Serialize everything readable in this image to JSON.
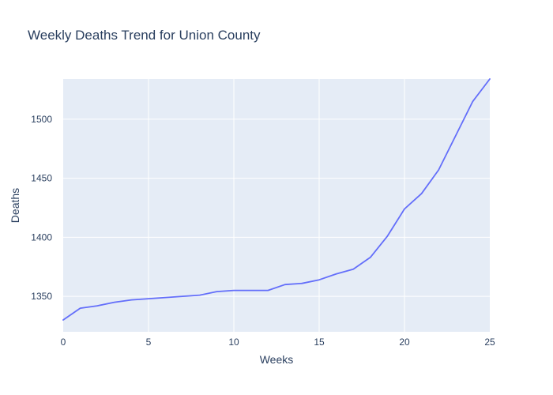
{
  "colors": {
    "plot_background": "#e5ecf6",
    "grid": "#ffffff",
    "series_line": "#636efa",
    "text": "#2a3f5f"
  },
  "chart_data": {
    "type": "line",
    "title": "Weekly Deaths Trend for Union County",
    "xlabel": "Weeks",
    "ylabel": "Deaths",
    "xlim": [
      0,
      25
    ],
    "ylim": [
      1320,
      1534
    ],
    "x_ticks": [
      0,
      5,
      10,
      15,
      20,
      25
    ],
    "y_ticks": [
      1350,
      1400,
      1450,
      1500
    ],
    "grid": true,
    "series": [
      {
        "name": "Deaths",
        "x": [
          0,
          1,
          2,
          3,
          4,
          5,
          6,
          7,
          8,
          9,
          10,
          11,
          12,
          13,
          14,
          15,
          16,
          17,
          18,
          19,
          20,
          21,
          22,
          23,
          24,
          25
        ],
        "values": [
          1330,
          1340,
          1342,
          1345,
          1347,
          1348,
          1349,
          1350,
          1351,
          1354,
          1355,
          1355,
          1355,
          1360,
          1361,
          1364,
          1369,
          1373,
          1383,
          1401,
          1424,
          1437,
          1457,
          1486,
          1515,
          1534
        ]
      }
    ]
  }
}
